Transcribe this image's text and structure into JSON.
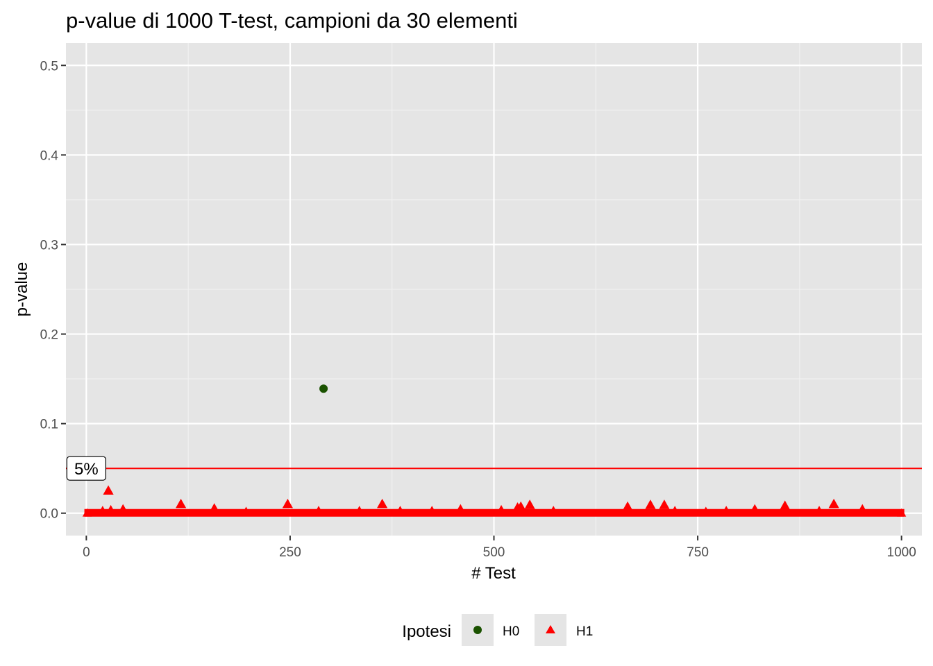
{
  "chart_data": {
    "type": "scatter",
    "title": "p-value di 1000 T-test, campioni da 30 elementi",
    "xlabel": "# Test",
    "ylabel": "p-value",
    "xlim": [
      -25,
      1025
    ],
    "ylim": [
      -0.025,
      0.525
    ],
    "xticks": [
      0,
      250,
      500,
      750,
      1000
    ],
    "xtick_labels": [
      "0",
      "250",
      "500",
      "750",
      "1000"
    ],
    "yticks": [
      0,
      0.1,
      0.2,
      0.3,
      0.4,
      0.5
    ],
    "ytick_labels": [
      "0.0",
      "0.1",
      "0.2",
      "0.3",
      "0.4",
      "0.5"
    ],
    "grid": true,
    "legend": {
      "title": "Ipotesi",
      "position": "bottom",
      "entries": [
        {
          "label": "H0",
          "shape": "circle",
          "color": "#1a5200"
        },
        {
          "label": "H1",
          "shape": "triangle",
          "color": "#ff0000"
        }
      ]
    },
    "hline": {
      "y": 0.05,
      "color": "#ff0000",
      "label": "5%",
      "label_x": 0
    },
    "series": [
      {
        "name": "H0",
        "shape": "circle",
        "color": "#1a5200",
        "points": [
          [
            291,
            0.139
          ]
        ]
      },
      {
        "name": "H1",
        "shape": "triangle",
        "color": "#ff0000",
        "baseline": {
          "x_start": 1,
          "x_end": 1000,
          "y": 0
        },
        "points": [
          [
            20,
            0.002
          ],
          [
            27,
            0.025
          ],
          [
            30,
            0.003
          ],
          [
            45,
            0.004
          ],
          [
            116,
            0.01
          ],
          [
            157,
            0.005
          ],
          [
            196,
            0.001
          ],
          [
            247,
            0.01
          ],
          [
            285,
            0.002
          ],
          [
            335,
            0.002
          ],
          [
            363,
            0.01
          ],
          [
            385,
            0.002
          ],
          [
            424,
            0.002
          ],
          [
            459,
            0.004
          ],
          [
            509,
            0.003
          ],
          [
            529,
            0.006
          ],
          [
            533,
            0.007
          ],
          [
            544,
            0.009
          ],
          [
            573,
            0.002
          ],
          [
            664,
            0.007
          ],
          [
            692,
            0.009
          ],
          [
            709,
            0.009
          ],
          [
            722,
            0.002
          ],
          [
            760,
            0.001
          ],
          [
            785,
            0.002
          ],
          [
            820,
            0.004
          ],
          [
            857,
            0.008
          ],
          [
            899,
            0.002
          ],
          [
            917,
            0.01
          ],
          [
            952,
            0.004
          ]
        ]
      }
    ]
  }
}
